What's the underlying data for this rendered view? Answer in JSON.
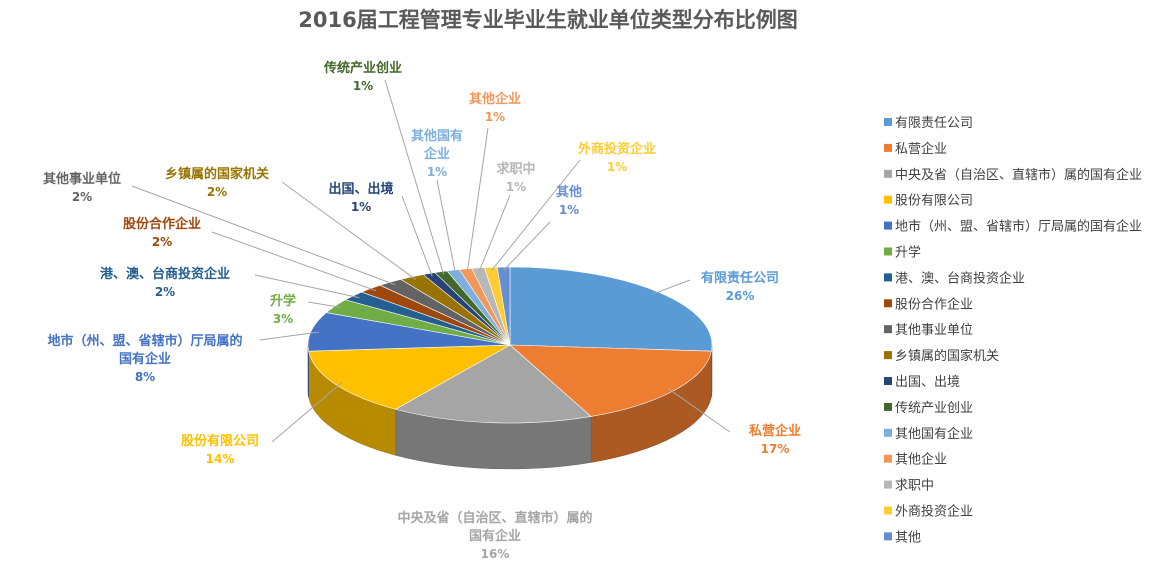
{
  "chart_data": {
    "type": "pie",
    "variant": "3d-pie",
    "title": "2016届工程管理专业毕业生就业单位类型分布比例图",
    "legend_position": "right",
    "slices": [
      {
        "name": "有限责任公司",
        "label": "有限责任公司",
        "value": 26,
        "pct_label": "26%",
        "color": "#5b9bd5"
      },
      {
        "name": "私营企业",
        "label": "私营企业",
        "value": 17,
        "pct_label": "17%",
        "color": "#ed7d31"
      },
      {
        "name": "中央及省（自治区、直辖市）属的国有企业",
        "label": "中央及省（自治区、直辖市）属的国有企业",
        "value": 16,
        "pct_label": "16%",
        "color": "#a5a5a5"
      },
      {
        "name": "股份有限公司",
        "label": "股份有限公司",
        "value": 14,
        "pct_label": "14%",
        "color": "#ffc000"
      },
      {
        "name": "地市（州、盟、省辖市）厅局属的国有企业",
        "label": "地市（州、盟、省辖市）厅局属的国有企业",
        "value": 8,
        "pct_label": "8%",
        "color": "#4472c4"
      },
      {
        "name": "升学",
        "label": "升学",
        "value": 3,
        "pct_label": "3%",
        "color": "#70ad47"
      },
      {
        "name": "港、澳、台商投资企业",
        "label": "港、澳、台商投资企业",
        "value": 2,
        "pct_label": "2%",
        "color": "#255e91"
      },
      {
        "name": "股份合作企业",
        "label": "股份合作企业",
        "value": 2,
        "pct_label": "2%",
        "color": "#9e480e"
      },
      {
        "name": "其他事业单位",
        "label": "其他事业单位",
        "value": 2,
        "pct_label": "2%",
        "color": "#636363"
      },
      {
        "name": "乡镇属的国家机关",
        "label": "乡镇属的国家机关",
        "value": 2,
        "pct_label": "2%",
        "color": "#997300"
      },
      {
        "name": "出国、出境",
        "label": "出国、出境",
        "value": 1,
        "pct_label": "1%",
        "color": "#264478"
      },
      {
        "name": "传统产业创业",
        "label": "传统产业创业",
        "value": 1,
        "pct_label": "1%",
        "color": "#43682b"
      },
      {
        "name": "其他国有企业",
        "label": "其他国有企业",
        "value": 1,
        "pct_label": "1%",
        "color": "#7cafdd"
      },
      {
        "name": "其他企业",
        "label": "其他企业",
        "value": 1,
        "pct_label": "1%",
        "color": "#f1975a"
      },
      {
        "name": "求职中",
        "label": "求职中",
        "value": 1,
        "pct_label": "1%",
        "color": "#b7b7b7"
      },
      {
        "name": "外商投资企业",
        "label": "外商投资企业",
        "value": 1,
        "pct_label": "1%",
        "color": "#ffcd33"
      },
      {
        "name": "其他",
        "label": "其他",
        "value": 1,
        "pct_label": "1%",
        "color": "#698ed0"
      }
    ]
  }
}
